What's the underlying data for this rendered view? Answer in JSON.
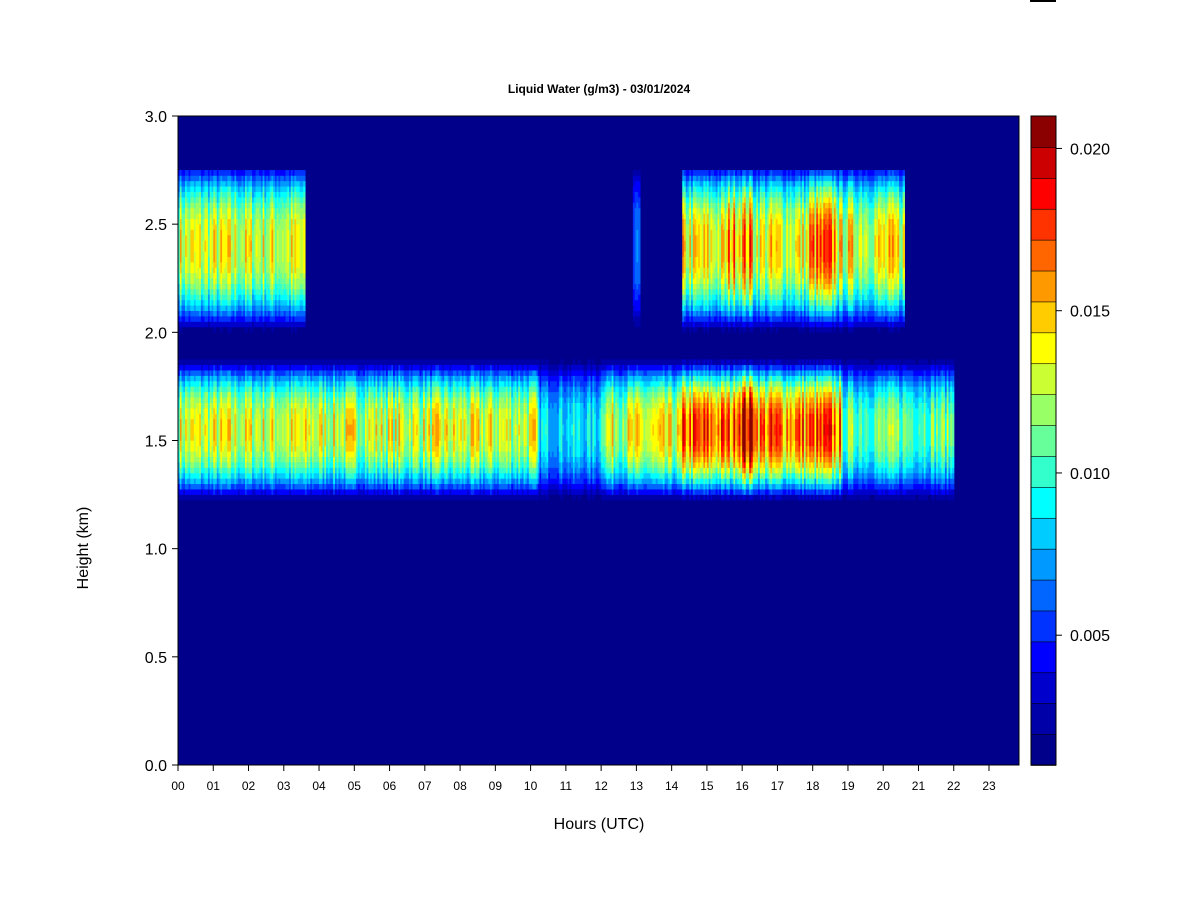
{
  "chart_data": {
    "type": "heatmap",
    "title": "Liquid Water (g/m3) - 03/01/2024",
    "xlabel": "Hours (UTC)",
    "ylabel": "Height (km)",
    "xlim": [
      0,
      24
    ],
    "ylim": [
      0.0,
      3.0
    ],
    "x_ticks": [
      "00",
      "01",
      "02",
      "03",
      "04",
      "05",
      "06",
      "07",
      "08",
      "09",
      "10",
      "11",
      "12",
      "13",
      "14",
      "15",
      "16",
      "17",
      "18",
      "19",
      "20",
      "21",
      "22",
      "23"
    ],
    "y_ticks": [
      "0.0",
      "0.5",
      "1.0",
      "1.5",
      "2.0",
      "2.5",
      "3.0"
    ],
    "colorbar": {
      "min": 0.001,
      "max": 0.021,
      "levels": 20,
      "tick_values": [
        0.005,
        0.01,
        0.015,
        0.02
      ],
      "tick_labels": [
        "0.005",
        "0.010",
        "0.015",
        "0.020"
      ],
      "colors": [
        "#00008b",
        "#0000a8",
        "#0000cd",
        "#0000ff",
        "#0033ff",
        "#0066ff",
        "#0099ff",
        "#00ccff",
        "#00ffff",
        "#33ffcc",
        "#66ff99",
        "#99ff66",
        "#ccff33",
        "#ffff00",
        "#ffcc00",
        "#ff9900",
        "#ff6600",
        "#ff3300",
        "#ff0000",
        "#cc0000",
        "#8b0000"
      ]
    },
    "layers": [
      {
        "name": "upper cloud layer",
        "height_range_km": [
          2.0,
          2.75
        ],
        "peak_height_km": 2.4,
        "segments": [
          {
            "hours": [
              0.0,
              3.6
            ],
            "peak_value": 0.0135
          },
          {
            "hours": [
              12.9,
              13.1
            ],
            "peak_value": 0.006
          },
          {
            "hours": [
              14.3,
              20.6
            ],
            "peak_value": 0.014
          },
          {
            "hours": [
              15.6,
              16.3
            ],
            "peak_value": 0.0165
          },
          {
            "hours": [
              17.9,
              18.7
            ],
            "peak_value": 0.0165
          }
        ]
      },
      {
        "name": "lower cloud layer",
        "height_range_km": [
          1.22,
          1.88
        ],
        "peak_height_km": 1.55,
        "segments": [
          {
            "hours": [
              0.0,
              10.2
            ],
            "peak_value": 0.0135
          },
          {
            "hours": [
              10.2,
              12.0
            ],
            "peak_value": 0.009
          },
          {
            "hours": [
              12.0,
              14.3
            ],
            "peak_value": 0.0135
          },
          {
            "hours": [
              14.3,
              18.8
            ],
            "peak_value": 0.017
          },
          {
            "hours": [
              15.8,
              16.4
            ],
            "peak_value": 0.0205
          },
          {
            "hours": [
              18.8,
              22.0
            ],
            "peak_value": 0.0115
          }
        ]
      }
    ]
  }
}
